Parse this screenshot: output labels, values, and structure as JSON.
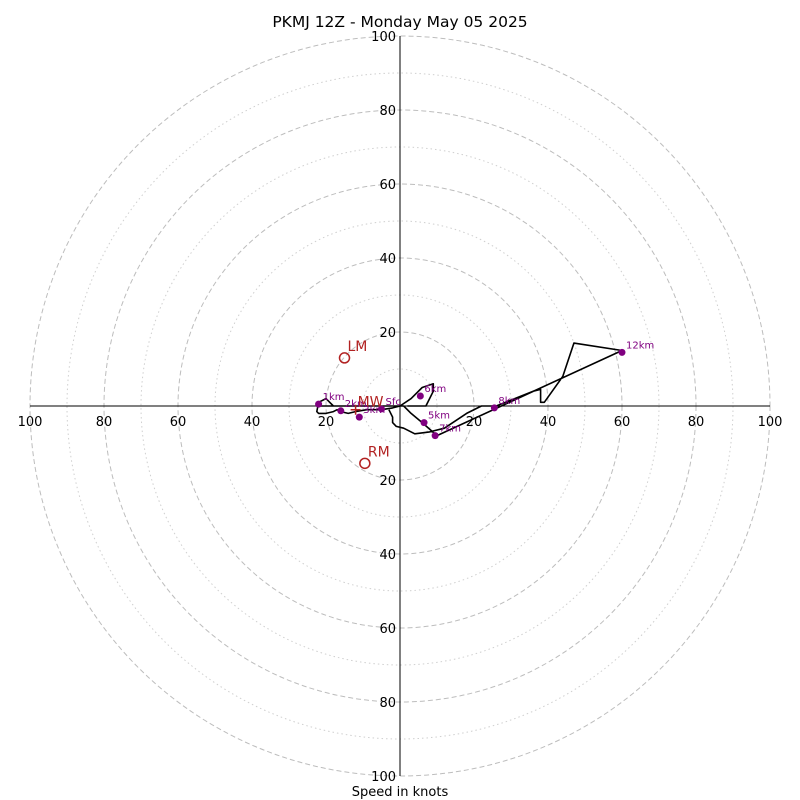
{
  "chart_data": {
    "type": "scatter",
    "title": "PKMJ 12Z - Monday May 05 2025",
    "xlabel": "Speed in knots",
    "rings": {
      "max": 100,
      "major_step": 20,
      "minor_step": 10,
      "major_style": "dashed",
      "minor_style": "dotted"
    },
    "axis_ticks": [
      {
        "label": "100",
        "value": 100
      },
      {
        "label": "80",
        "value": 80
      },
      {
        "label": "60",
        "value": 60
      },
      {
        "label": "40",
        "value": 40
      },
      {
        "label": "20",
        "value": 20
      }
    ],
    "hodograph_trace": {
      "units": "knots (u east, v north)",
      "points": [
        [
          -3,
          -1
        ],
        [
          -2,
          -3
        ],
        [
          -2,
          -4.5
        ],
        [
          -1,
          -5.5
        ],
        [
          1,
          -6
        ],
        [
          4,
          -7.5
        ],
        [
          8,
          -7
        ],
        [
          12,
          -6
        ],
        [
          18,
          -2
        ],
        [
          22,
          0
        ],
        [
          26,
          0
        ],
        [
          31,
          2
        ],
        [
          36,
          4
        ],
        [
          38,
          4.5
        ],
        [
          38,
          1
        ],
        [
          39,
          1
        ],
        [
          44,
          8
        ],
        [
          47,
          17
        ],
        [
          60,
          15
        ],
        [
          10,
          -8
        ],
        [
          6,
          -4.5
        ],
        [
          3,
          -2
        ],
        [
          1,
          0
        ],
        [
          0,
          0
        ],
        [
          -2,
          -0.5
        ],
        [
          -5,
          -1
        ],
        [
          -9,
          -1
        ],
        [
          -12,
          -1.5
        ],
        [
          -14,
          -2
        ],
        [
          -16,
          -1.5
        ],
        [
          -17,
          -1
        ],
        [
          -18,
          -1.5
        ],
        [
          -20,
          -2
        ],
        [
          -22,
          -2
        ],
        [
          -22.5,
          -1.5
        ],
        [
          -22,
          1
        ],
        [
          -20,
          2
        ],
        [
          -19,
          1
        ],
        [
          -18,
          0
        ],
        [
          -20,
          0
        ],
        [
          -22,
          0
        ],
        [
          0,
          0
        ],
        [
          3,
          2
        ],
        [
          6,
          5
        ],
        [
          9,
          6
        ],
        [
          9,
          4
        ],
        [
          8,
          2
        ],
        [
          7,
          0
        ],
        [
          5,
          0
        ],
        [
          2,
          0
        ]
      ]
    },
    "height_markers": [
      {
        "label": "1km",
        "u": -22,
        "v": 0.5
      },
      {
        "label": "2km",
        "u": -16,
        "v": -1.3
      },
      {
        "label": "3km",
        "u": -11,
        "v": -3
      },
      {
        "label": "Sfc",
        "u": -5,
        "v": -0.8
      },
      {
        "label": "5km",
        "u": 6.5,
        "v": -4.5
      },
      {
        "label": "6km",
        "u": 5.5,
        "v": 2.7
      },
      {
        "label": "7km",
        "u": 9.5,
        "v": -8
      },
      {
        "label": "8km",
        "u": 25.5,
        "v": -0.5
      },
      {
        "label": "12km",
        "u": 60,
        "v": 14.5
      }
    ],
    "storm_motion": [
      {
        "label": "LM",
        "u": -15,
        "v": 13,
        "marker": "circle"
      },
      {
        "label": "MW",
        "u": -12,
        "v": -1,
        "marker": "plus"
      },
      {
        "label": "RM",
        "u": -9.5,
        "v": -15.5,
        "marker": "circle"
      }
    ],
    "colors": {
      "trace": "#000000",
      "height_markers": "#800080",
      "storm_motion": "#b22222",
      "ring_major": "#bdbdbd",
      "ring_minor": "#cfcfcf"
    },
    "grid": true
  }
}
